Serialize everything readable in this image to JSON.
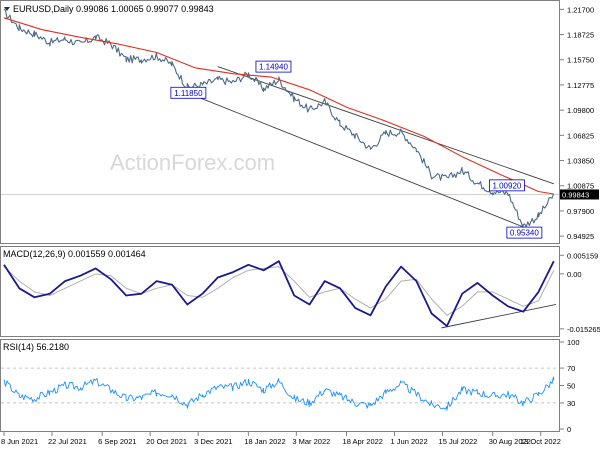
{
  "chart_data": [
    {
      "panel": "price",
      "type": "line",
      "title": "EURUSD,Daily  0.99086 1.00065 0.99077 0.99843",
      "watermark": "ActionForex.com",
      "y_ticks": [
        "1.21700",
        "1.18725",
        "1.15750",
        "1.12775",
        "1.09800",
        "1.06825",
        "1.03850",
        "1.00875",
        "0.97900",
        "0.94925"
      ],
      "ylim": [
        0.9435,
        1.2245
      ],
      "current_price": "0.99843",
      "current_value": 0.99843,
      "series": [
        {
          "name": "",
          "color": "#4a6a8a",
          "x": [
            "2021-06-08",
            "2021-06-22",
            "2021-07-06",
            "2021-07-20",
            "2021-08-03",
            "2021-08-17",
            "2021-08-31",
            "2021-09-14",
            "2021-09-28",
            "2021-10-12",
            "2021-10-26",
            "2021-11-09",
            "2021-11-23",
            "2021-12-07",
            "2021-12-21",
            "2022-01-04",
            "2022-01-18",
            "2022-02-01",
            "2022-02-15",
            "2022-03-01",
            "2022-03-15",
            "2022-03-29",
            "2022-04-12",
            "2022-04-26",
            "2022-05-10",
            "2022-05-24",
            "2022-06-07",
            "2022-06-21",
            "2022-07-05",
            "2022-07-19",
            "2022-08-02",
            "2022-08-16",
            "2022-08-30",
            "2022-09-13",
            "2022-09-27",
            "2022-10-11",
            "2022-10-25"
          ],
          "values": [
            1.214,
            1.195,
            1.188,
            1.178,
            1.182,
            1.176,
            1.184,
            1.176,
            1.158,
            1.158,
            1.162,
            1.152,
            1.125,
            1.128,
            1.134,
            1.131,
            1.141,
            1.123,
            1.134,
            1.112,
            1.098,
            1.108,
            1.082,
            1.068,
            1.052,
            1.071,
            1.072,
            1.052,
            1.021,
            1.017,
            1.027,
            1.012,
            1.002,
            1.0,
            0.961,
            0.973,
            0.998
          ]
        },
        {
          "name": "",
          "color": "#e03020",
          "x": [
            "2021-06-08",
            "2021-07-13",
            "2021-08-17",
            "2021-09-21",
            "2021-10-26",
            "2021-11-30",
            "2022-01-04",
            "2022-02-08",
            "2022-03-15",
            "2022-04-19",
            "2022-05-24",
            "2022-06-28",
            "2022-08-02",
            "2022-09-06",
            "2022-10-11",
            "2022-10-25"
          ],
          "values": [
            1.207,
            1.193,
            1.184,
            1.176,
            1.166,
            1.148,
            1.141,
            1.137,
            1.122,
            1.101,
            1.085,
            1.067,
            1.043,
            1.022,
            1.002,
            0.999
          ]
        }
      ],
      "trendlines": [
        {
          "x": [
            "2021-12-21",
            "2022-10-25"
          ],
          "values": [
            1.1494,
            1.011
          ]
        },
        {
          "x": [
            "2021-11-23",
            "2022-10-10"
          ],
          "values": [
            1.1185,
            0.9534
          ]
        }
      ],
      "level_labels": [
        "1.14940",
        "1.11850",
        "1.00920",
        "0.95340"
      ],
      "level_points": [
        {
          "label": "1.14940",
          "x": "2022-02-10",
          "value": 1.1494
        },
        {
          "label": "1.11850",
          "x": "2021-11-24",
          "value": 1.1185
        },
        {
          "label": "1.00920",
          "x": "2022-09-12",
          "value": 1.0092
        },
        {
          "label": "0.95340",
          "x": "2022-09-28",
          "value": 0.9534
        }
      ]
    },
    {
      "panel": "macd",
      "type": "line",
      "title": "MACD(12,26,9) 0.001559 0.001464",
      "y_ticks": [
        "0.005159",
        "0.00",
        "-0.015265"
      ],
      "ylim": [
        -0.0167,
        0.0069
      ],
      "series": [
        {
          "name": "",
          "color": "#1a1a8c",
          "x": [
            "2021-06-08",
            "2021-06-22",
            "2021-07-06",
            "2021-07-20",
            "2021-08-03",
            "2021-08-17",
            "2021-08-31",
            "2021-09-14",
            "2021-09-28",
            "2021-10-12",
            "2021-10-26",
            "2021-11-09",
            "2021-11-23",
            "2021-12-07",
            "2021-12-21",
            "2022-01-04",
            "2022-01-18",
            "2022-02-01",
            "2022-02-15",
            "2022-03-01",
            "2022-03-15",
            "2022-03-29",
            "2022-04-12",
            "2022-04-26",
            "2022-05-10",
            "2022-05-24",
            "2022-06-07",
            "2022-06-21",
            "2022-07-05",
            "2022-07-19",
            "2022-08-02",
            "2022-08-16",
            "2022-08-30",
            "2022-09-13",
            "2022-09-27",
            "2022-10-11",
            "2022-10-25"
          ],
          "values": [
            0.0025,
            -0.004,
            -0.0065,
            -0.0055,
            -0.002,
            -0.0005,
            0.0015,
            -0.0015,
            -0.006,
            -0.0055,
            -0.002,
            -0.003,
            -0.0085,
            -0.0055,
            -0.001,
            0.0005,
            0.0025,
            0.001,
            0.0035,
            -0.006,
            -0.0085,
            -0.002,
            -0.004,
            -0.0095,
            -0.0115,
            -0.0035,
            0.002,
            -0.002,
            -0.011,
            -0.0145,
            -0.0055,
            -0.0025,
            -0.006,
            -0.009,
            -0.0105,
            -0.005,
            0.0035
          ]
        },
        {
          "name": "",
          "color": "#b0b0b0",
          "x": [
            "2021-06-08",
            "2021-06-22",
            "2021-07-06",
            "2021-07-20",
            "2021-08-03",
            "2021-08-17",
            "2021-08-31",
            "2021-09-14",
            "2021-09-28",
            "2021-10-12",
            "2021-10-26",
            "2021-11-09",
            "2021-11-23",
            "2021-12-07",
            "2021-12-21",
            "2022-01-04",
            "2022-01-18",
            "2022-02-01",
            "2022-02-15",
            "2022-03-01",
            "2022-03-15",
            "2022-03-29",
            "2022-04-12",
            "2022-04-26",
            "2022-05-10",
            "2022-05-24",
            "2022-06-07",
            "2022-06-21",
            "2022-07-05",
            "2022-07-19",
            "2022-08-02",
            "2022-08-16",
            "2022-08-30",
            "2022-09-13",
            "2022-09-27",
            "2022-10-11",
            "2022-10-25"
          ],
          "values": [
            0.002,
            -0.002,
            -0.005,
            -0.006,
            -0.004,
            -0.002,
            0.0,
            -0.0005,
            -0.004,
            -0.0055,
            -0.004,
            -0.003,
            -0.006,
            -0.0065,
            -0.004,
            -0.001,
            0.001,
            0.0015,
            0.002,
            -0.002,
            -0.0065,
            -0.005,
            -0.004,
            -0.007,
            -0.0095,
            -0.007,
            -0.002,
            -0.0015,
            -0.007,
            -0.0115,
            -0.009,
            -0.005,
            -0.005,
            -0.007,
            -0.009,
            -0.0075,
            0.001
          ]
        }
      ],
      "trendlines": [
        {
          "x": [
            "2022-07-14",
            "2022-10-27"
          ],
          "values": [
            -0.015,
            -0.0085
          ]
        }
      ]
    },
    {
      "panel": "rsi",
      "type": "line",
      "title": "RSI(14) 56.2180",
      "y_ticks": [
        "100",
        "70",
        "50",
        "30",
        "0"
      ],
      "ylim": [
        0,
        100
      ],
      "series": [
        {
          "name": "",
          "color": "#1e90ff",
          "x": [
            "2021-06-08",
            "2021-06-22",
            "2021-07-06",
            "2021-07-20",
            "2021-08-03",
            "2021-08-17",
            "2021-08-31",
            "2021-09-14",
            "2021-09-28",
            "2021-10-12",
            "2021-10-26",
            "2021-11-09",
            "2021-11-23",
            "2021-12-07",
            "2021-12-21",
            "2022-01-04",
            "2022-01-18",
            "2022-02-01",
            "2022-02-15",
            "2022-03-01",
            "2022-03-15",
            "2022-03-29",
            "2022-04-12",
            "2022-04-26",
            "2022-05-10",
            "2022-05-24",
            "2022-06-07",
            "2022-06-21",
            "2022-07-05",
            "2022-07-19",
            "2022-08-02",
            "2022-08-16",
            "2022-08-30",
            "2022-09-13",
            "2022-09-27",
            "2022-10-11",
            "2022-10-25"
          ],
          "values": [
            55,
            38,
            35,
            42,
            50,
            48,
            55,
            45,
            35,
            36,
            42,
            40,
            28,
            40,
            48,
            48,
            55,
            45,
            55,
            35,
            30,
            45,
            38,
            30,
            27,
            42,
            52,
            40,
            28,
            25,
            45,
            42,
            38,
            40,
            30,
            40,
            56
          ]
        }
      ]
    }
  ],
  "x_axis": {
    "labels": [
      "8 Jun 2021",
      "22 Jul 2021",
      "6 Sep 2021",
      "20 Oct 2021",
      "3 Dec 2021",
      "18 Jan 2022",
      "3 Mar 2022",
      "18 Apr 2022",
      "1 Jun 2022",
      "15 Jul 2022",
      "30 Aug 2022",
      "13 Oct 2022"
    ],
    "dates": [
      "2021-06-08",
      "2021-07-22",
      "2021-09-06",
      "2021-10-20",
      "2021-12-03",
      "2022-01-18",
      "2022-03-03",
      "2022-04-18",
      "2022-06-01",
      "2022-07-15",
      "2022-08-30",
      "2022-10-13"
    ]
  },
  "colors": {
    "price_line": "#4a6a8a",
    "moving_average": "#e03020",
    "macd": "#1a1a8c",
    "signal": "#b0b0b0",
    "rsi": "#1e90ff",
    "label_text": "#0000cc",
    "trendline": "#404040"
  }
}
